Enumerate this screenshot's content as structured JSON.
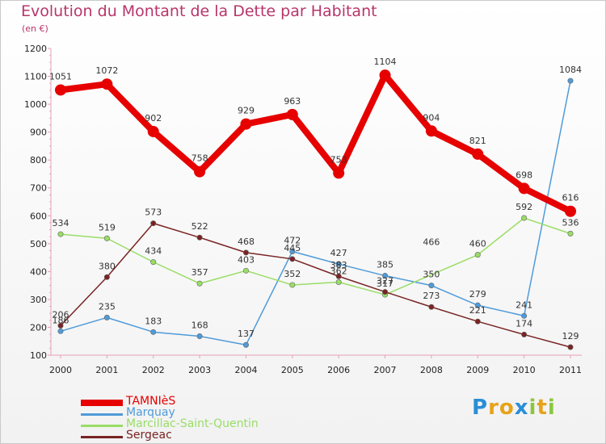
{
  "header": {
    "title": "Evolution du Montant de la Dette par Habitant",
    "subtitle": "(en €)"
  },
  "logo": {
    "letters": [
      "P",
      "r",
      "o",
      "x",
      "i",
      "t",
      "i"
    ],
    "colors": [
      "#2a8ed6",
      "#e8a21a",
      "#e8a21a",
      "#2a8ed6",
      "#8cc63f",
      "#e8a21a",
      "#8cc63f"
    ]
  },
  "chart_data": {
    "type": "line",
    "x": [
      "2000",
      "2001",
      "2002",
      "2003",
      "2004",
      "2005",
      "2006",
      "2007",
      "2008",
      "2009",
      "2010",
      "2011"
    ],
    "ylim": [
      100,
      1200
    ],
    "yticks": [
      100,
      200,
      300,
      400,
      500,
      600,
      700,
      800,
      900,
      1000,
      1100,
      1200
    ],
    "grid": false,
    "legend_position": "bottom-left",
    "series": [
      {
        "name": "TAMNIèS",
        "color": "#e60000",
        "values": [
          1051,
          1072,
          902,
          758,
          929,
          963,
          753,
          1104,
          904,
          821,
          698,
          616
        ]
      },
      {
        "name": "Marquay",
        "color": "#4f9bd9",
        "values": [
          186,
          235,
          183,
          168,
          137,
          472,
          427,
          385,
          350,
          279,
          241,
          1084
        ]
      },
      {
        "name": "Marcillac-Saint-Quentin",
        "color": "#99dd66",
        "values": [
          534,
          519,
          434,
          357,
          403,
          352,
          362,
          317,
          null,
          460,
          592,
          536
        ]
      },
      {
        "name": "Sergeac",
        "color": "#7a2323",
        "values": [
          206,
          380,
          573,
          522,
          468,
          445,
          383,
          327,
          273,
          221,
          174,
          129
        ]
      }
    ],
    "data_labels": [
      {
        "series": 0,
        "text": [
          "1051",
          "1072",
          "902",
          "758",
          "929",
          "963",
          "753",
          "1104",
          "904",
          "821",
          "698",
          "616"
        ]
      },
      {
        "series": 1,
        "text": [
          "186",
          "235",
          "183",
          "168",
          "137",
          "472",
          "427",
          "385",
          "350",
          "279",
          "241",
          "1084"
        ]
      },
      {
        "series": 2,
        "text": [
          "534",
          "519",
          "434",
          "357",
          "403",
          "352",
          "362",
          "317",
          "466",
          "460",
          "592",
          "536"
        ]
      },
      {
        "series": 3,
        "text": [
          "206",
          "380",
          "573",
          "522",
          "468",
          "445",
          "383",
          "327",
          "273",
          "221",
          "174",
          "129"
        ]
      }
    ]
  }
}
